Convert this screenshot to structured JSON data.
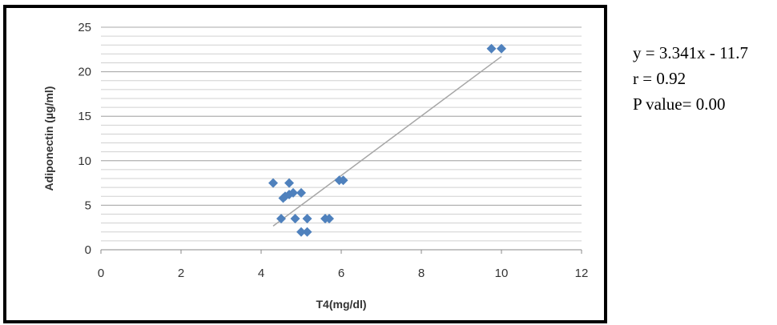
{
  "chart_data": {
    "type": "scatter",
    "title": "",
    "xlabel": "T4(mg/dl)",
    "ylabel": "Adiponectin (µg/ml)",
    "xlim": [
      0,
      12
    ],
    "ylim": [
      0,
      25
    ],
    "x_ticks": [
      "0",
      "2",
      "4",
      "6",
      "8",
      "10",
      "12"
    ],
    "y_ticks": [
      "0",
      "5",
      "10",
      "15",
      "20",
      "25"
    ],
    "grid": true,
    "minor_grid_step": 1,
    "marker_color": "#4f81bd",
    "marker_shape": "diamond",
    "points": [
      {
        "x": 4.3,
        "y": 7.5
      },
      {
        "x": 4.7,
        "y": 7.5
      },
      {
        "x": 4.5,
        "y": 3.5
      },
      {
        "x": 4.85,
        "y": 3.5
      },
      {
        "x": 5.15,
        "y": 3.5
      },
      {
        "x": 5.6,
        "y": 3.5
      },
      {
        "x": 5.7,
        "y": 3.5
      },
      {
        "x": 5.0,
        "y": 2.0
      },
      {
        "x": 5.15,
        "y": 2.0
      },
      {
        "x": 4.55,
        "y": 5.8
      },
      {
        "x": 4.6,
        "y": 6.0
      },
      {
        "x": 4.7,
        "y": 6.2
      },
      {
        "x": 4.8,
        "y": 6.4
      },
      {
        "x": 5.0,
        "y": 6.4
      },
      {
        "x": 5.95,
        "y": 7.8
      },
      {
        "x": 6.05,
        "y": 7.8
      },
      {
        "x": 9.75,
        "y": 22.6
      },
      {
        "x": 10.0,
        "y": 22.6
      }
    ],
    "trendline": {
      "color": "#a6a6a6",
      "x_range": [
        4.3,
        10.0
      ],
      "slope": 3.341,
      "intercept": -11.7
    }
  },
  "stats": {
    "equation": "y = 3.341x - 11.7",
    "r": "r = 0.92",
    "p_value": "P value= 0.00"
  }
}
